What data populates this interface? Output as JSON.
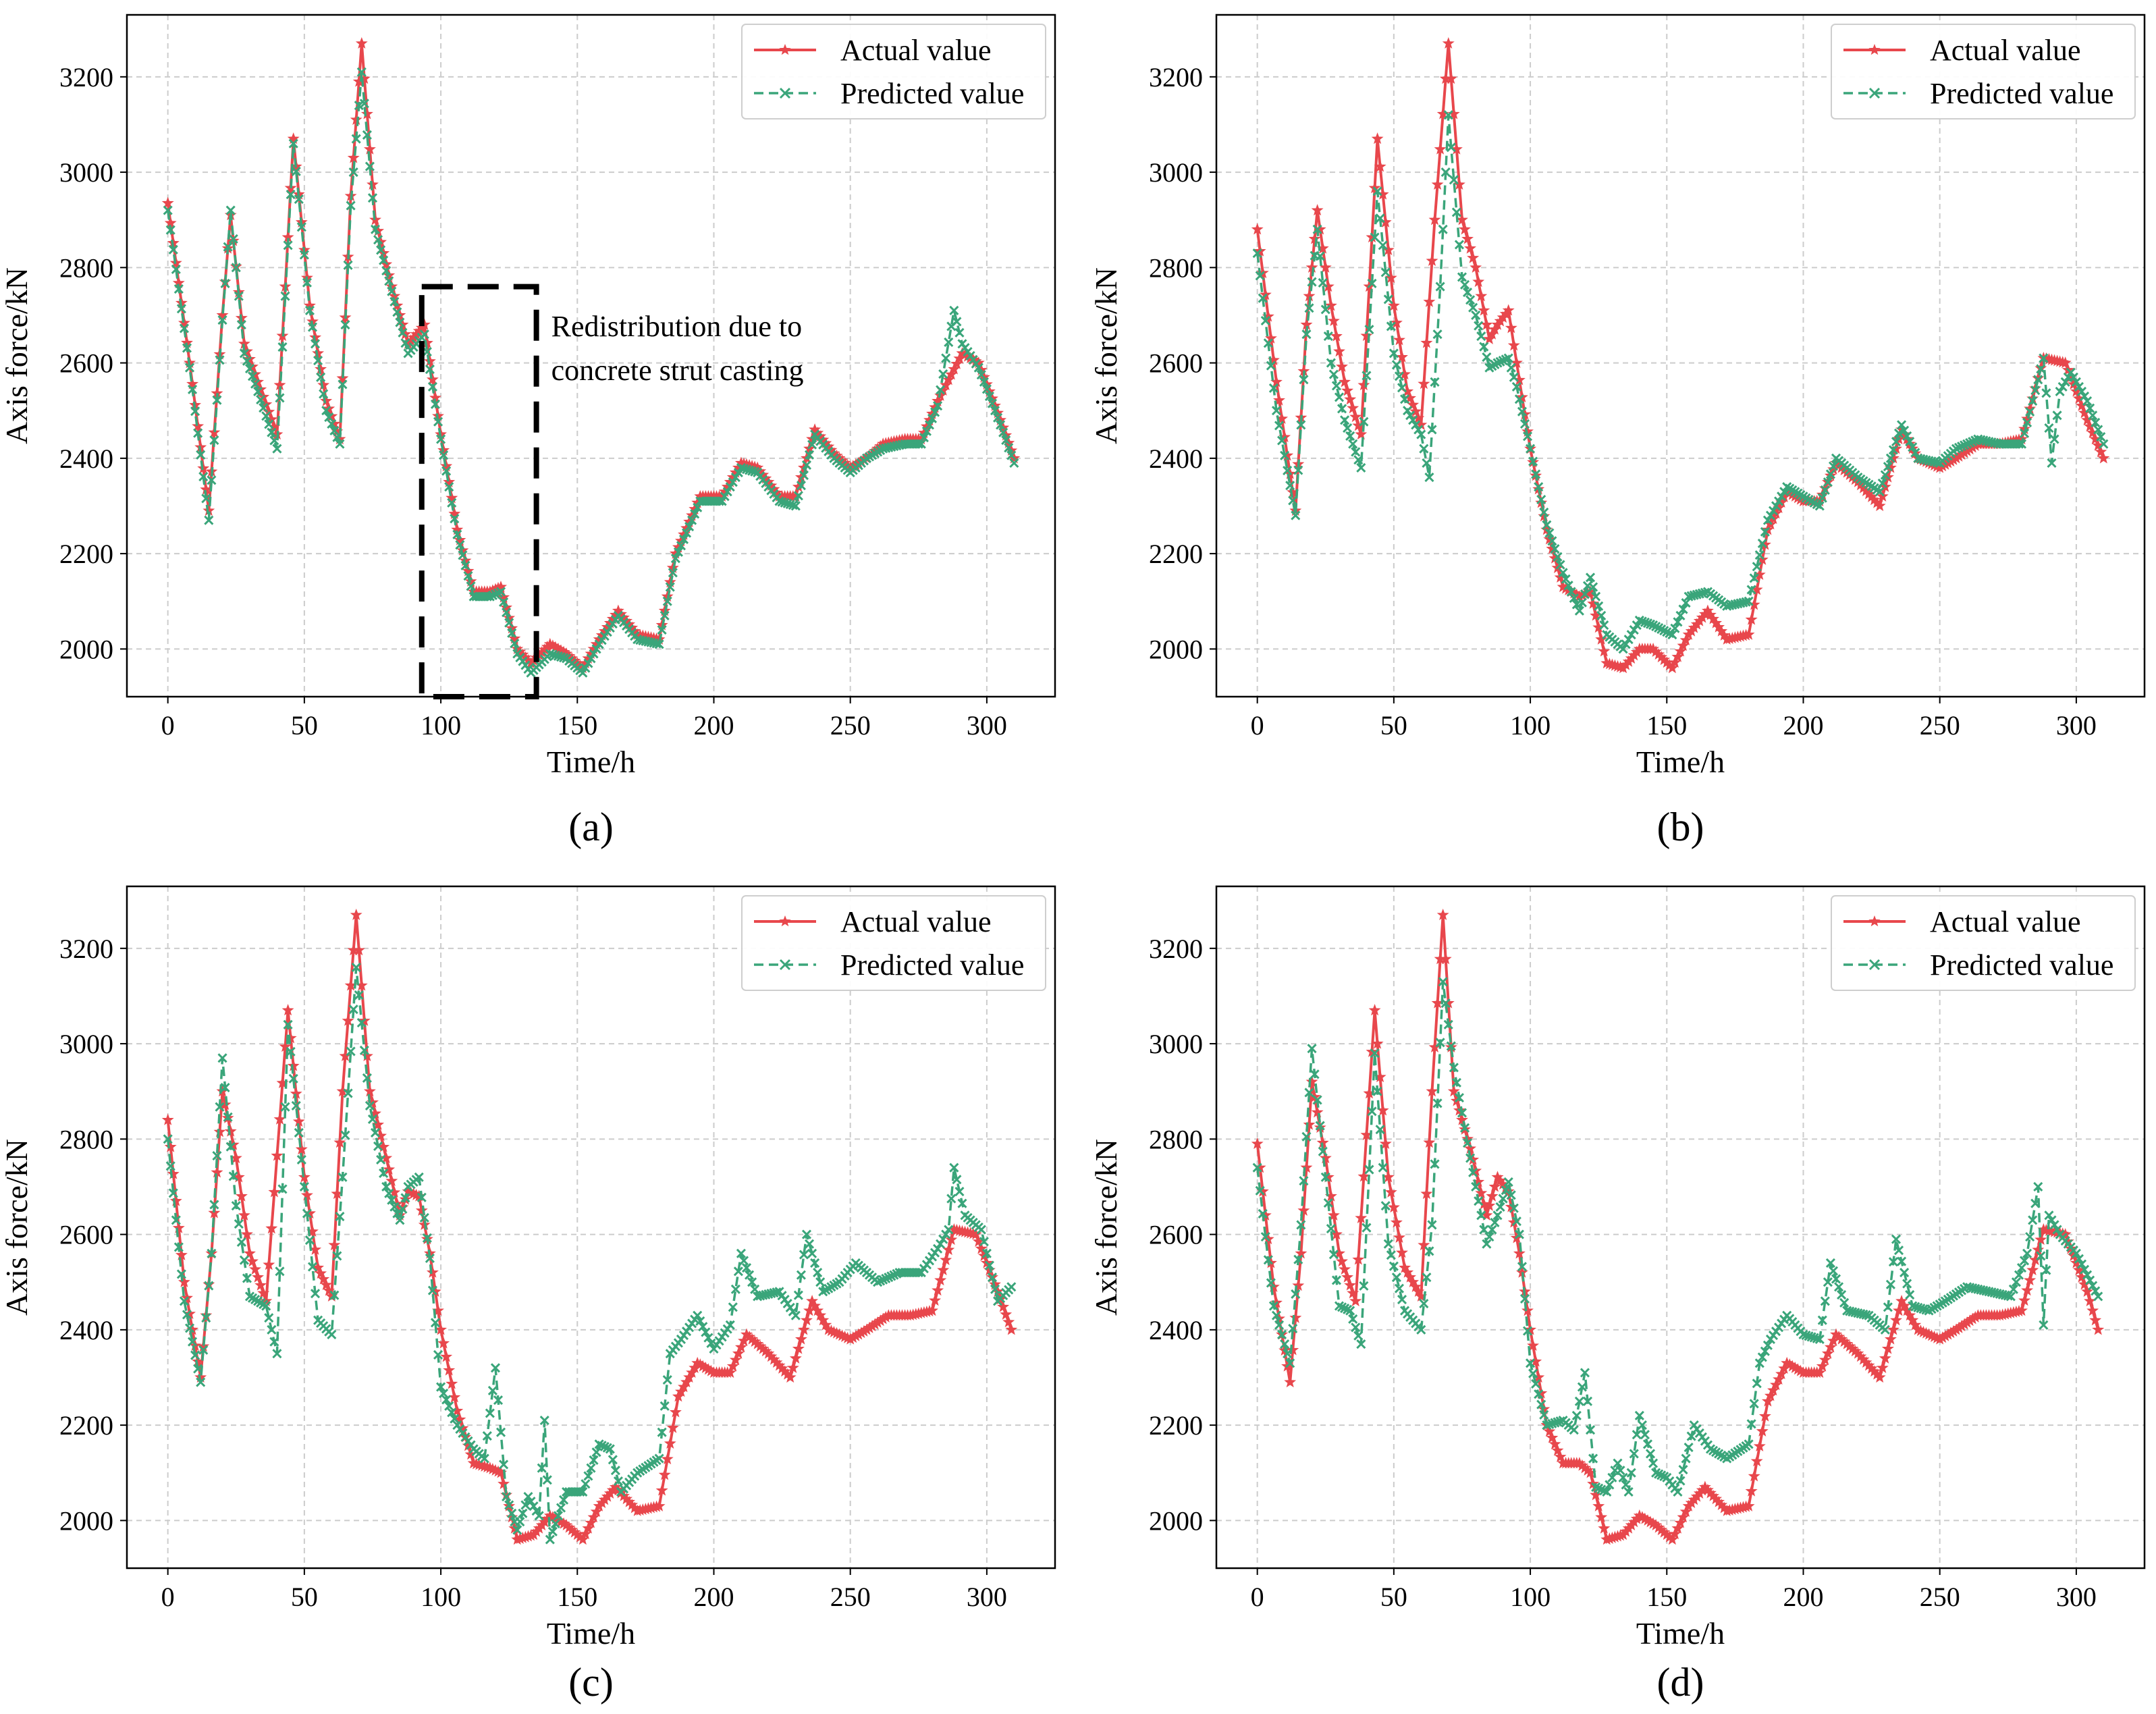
{
  "colors": {
    "actual": "#e8474c",
    "predicted": "#3aa57a",
    "grid": "#cccccc",
    "annotation_box": "#000000"
  },
  "chart_data": [
    {
      "type": "line",
      "panel": "a",
      "caption": "(a)",
      "xlabel": "Time/h",
      "ylabel": "Axis force/kN",
      "xlim": [
        -15,
        325
      ],
      "ylim": [
        1900,
        3330
      ],
      "xticks": [
        0,
        50,
        100,
        150,
        200,
        250,
        300
      ],
      "yticks": [
        2000,
        2200,
        2400,
        2600,
        2800,
        3000,
        3200
      ],
      "grid": true,
      "legend": "top-right",
      "annotation": {
        "text_line1": "Redistribution due to",
        "text_line2": "concrete strut casting",
        "box_x": [
          93,
          135
        ],
        "box_y": [
          1900,
          2760
        ]
      },
      "series": [
        {
          "name": "Actual value",
          "style": "solid-star",
          "x": [
            0,
            8,
            15,
            20,
            23,
            28,
            33,
            40,
            46,
            52,
            58,
            63,
            67,
            71,
            76,
            82,
            88,
            94,
            100,
            106,
            112,
            118,
            122,
            128,
            133,
            140,
            146,
            152,
            158,
            165,
            172,
            180,
            186,
            195,
            203,
            210,
            216,
            224,
            230,
            237,
            244,
            250,
            256,
            262,
            270,
            276,
            282,
            291,
            297,
            305,
            310
          ],
          "values": [
            2935,
            2600,
            2290,
            2700,
            2910,
            2640,
            2560,
            2450,
            3070,
            2720,
            2520,
            2440,
            2950,
            3270,
            2900,
            2760,
            2640,
            2680,
            2450,
            2250,
            2120,
            2120,
            2130,
            2000,
            1970,
            2010,
            1990,
            1960,
            2020,
            2080,
            2030,
            2020,
            2200,
            2320,
            2320,
            2390,
            2380,
            2320,
            2320,
            2460,
            2410,
            2380,
            2400,
            2430,
            2440,
            2440,
            2520,
            2620,
            2600,
            2480,
            2400
          ]
        },
        {
          "name": "Predicted value",
          "style": "dashed-x",
          "x": [
            0,
            8,
            15,
            20,
            23,
            28,
            33,
            40,
            46,
            52,
            58,
            63,
            67,
            71,
            76,
            82,
            88,
            94,
            100,
            106,
            112,
            118,
            122,
            128,
            133,
            140,
            146,
            152,
            158,
            165,
            172,
            180,
            186,
            195,
            203,
            210,
            216,
            224,
            230,
            237,
            244,
            250,
            256,
            262,
            270,
            276,
            282,
            288,
            291,
            297,
            305,
            310
          ],
          "values": [
            2920,
            2590,
            2270,
            2690,
            2920,
            2620,
            2540,
            2420,
            3060,
            2710,
            2500,
            2430,
            2930,
            3210,
            2880,
            2750,
            2620,
            2660,
            2440,
            2240,
            2110,
            2110,
            2120,
            1990,
            1950,
            1990,
            1980,
            1950,
            2010,
            2070,
            2020,
            2010,
            2190,
            2310,
            2310,
            2380,
            2370,
            2310,
            2300,
            2450,
            2400,
            2370,
            2400,
            2420,
            2430,
            2430,
            2510,
            2710,
            2640,
            2590,
            2470,
            2390
          ]
        }
      ]
    },
    {
      "type": "line",
      "panel": "b",
      "caption": "(b)",
      "xlabel": "Time/h",
      "ylabel": "Axis force/kN",
      "xlim": [
        -15,
        325
      ],
      "ylim": [
        1900,
        3330
      ],
      "xticks": [
        0,
        50,
        100,
        150,
        200,
        250,
        300
      ],
      "yticks": [
        2000,
        2200,
        2400,
        2600,
        2800,
        3000,
        3200
      ],
      "grid": true,
      "legend": "top-right",
      "series": [
        {
          "name": "Actual value",
          "style": "solid-star",
          "x": [
            0,
            7,
            14,
            18,
            22,
            27,
            32,
            38,
            44,
            50,
            55,
            60,
            65,
            70,
            75,
            80,
            85,
            88,
            92,
            95,
            100,
            106,
            112,
            118,
            122,
            128,
            134,
            140,
            145,
            152,
            158,
            165,
            172,
            180,
            187,
            194,
            200,
            206,
            212,
            220,
            228,
            236,
            242,
            250,
            256,
            264,
            272,
            280,
            288,
            296,
            304,
            310
          ],
          "values": [
            2880,
            2560,
            2290,
            2680,
            2920,
            2720,
            2560,
            2450,
            3070,
            2720,
            2540,
            2470,
            2900,
            3270,
            2900,
            2800,
            2650,
            2680,
            2710,
            2600,
            2420,
            2250,
            2130,
            2110,
            2120,
            1970,
            1960,
            2000,
            2000,
            1960,
            2030,
            2080,
            2020,
            2030,
            2250,
            2330,
            2310,
            2310,
            2390,
            2350,
            2300,
            2460,
            2400,
            2380,
            2400,
            2430,
            2430,
            2440,
            2610,
            2600,
            2480,
            2400
          ]
        },
        {
          "name": "Predicted value",
          "style": "dashed-x",
          "x": [
            0,
            7,
            14,
            18,
            22,
            27,
            32,
            38,
            44,
            50,
            55,
            60,
            63,
            67,
            70,
            75,
            80,
            85,
            88,
            92,
            95,
            100,
            106,
            112,
            118,
            122,
            128,
            134,
            140,
            145,
            152,
            158,
            165,
            172,
            180,
            187,
            194,
            200,
            206,
            212,
            220,
            228,
            236,
            242,
            250,
            256,
            264,
            272,
            280,
            284,
            288,
            291,
            294,
            298,
            304,
            310
          ],
          "values": [
            2830,
            2500,
            2280,
            2660,
            2880,
            2600,
            2480,
            2380,
            2960,
            2620,
            2500,
            2450,
            2360,
            2760,
            3120,
            2780,
            2700,
            2590,
            2600,
            2610,
            2550,
            2420,
            2260,
            2160,
            2080,
            2150,
            2030,
            2000,
            2060,
            2050,
            2030,
            2110,
            2120,
            2090,
            2100,
            2270,
            2340,
            2320,
            2300,
            2400,
            2360,
            2330,
            2470,
            2400,
            2390,
            2420,
            2440,
            2430,
            2430,
            2520,
            2610,
            2390,
            2540,
            2580,
            2520,
            2430
          ]
        }
      ]
    },
    {
      "type": "line",
      "panel": "c",
      "caption": "(c)",
      "xlabel": "Time/h",
      "ylabel": "Axis force/kN",
      "xlim": [
        -15,
        325
      ],
      "ylim": [
        1900,
        3330
      ],
      "xticks": [
        0,
        50,
        100,
        150,
        200,
        250,
        300
      ],
      "yticks": [
        2000,
        2200,
        2400,
        2600,
        2800,
        3000,
        3200
      ],
      "grid": true,
      "legend": "top-right",
      "series": [
        {
          "name": "Actual value",
          "style": "solid-star",
          "x": [
            0,
            6,
            12,
            16,
            20,
            25,
            30,
            36,
            44,
            50,
            55,
            60,
            64,
            69,
            74,
            80,
            85,
            88,
            92,
            96,
            100,
            106,
            112,
            118,
            122,
            128,
            134,
            140,
            146,
            152,
            158,
            164,
            172,
            180,
            187,
            194,
            200,
            206,
            212,
            220,
            228,
            236,
            242,
            250,
            256,
            264,
            272,
            280,
            288,
            296,
            304,
            309
          ],
          "values": [
            2840,
            2500,
            2300,
            2560,
            2900,
            2760,
            2560,
            2460,
            3070,
            2720,
            2530,
            2470,
            2900,
            3270,
            2900,
            2760,
            2640,
            2690,
            2680,
            2560,
            2400,
            2230,
            2120,
            2110,
            2100,
            1960,
            1970,
            2010,
            1990,
            1960,
            2030,
            2070,
            2020,
            2030,
            2260,
            2330,
            2310,
            2310,
            2390,
            2350,
            2300,
            2460,
            2400,
            2380,
            2400,
            2430,
            2430,
            2440,
            2610,
            2600,
            2480,
            2400
          ]
        },
        {
          "name": "Predicted value",
          "style": "dashed-x",
          "x": [
            0,
            6,
            12,
            16,
            20,
            25,
            30,
            36,
            40,
            44,
            50,
            55,
            60,
            64,
            69,
            74,
            80,
            85,
            88,
            92,
            96,
            100,
            106,
            112,
            116,
            120,
            124,
            128,
            132,
            136,
            138,
            140,
            146,
            152,
            158,
            162,
            166,
            172,
            180,
            184,
            188,
            194,
            200,
            206,
            210,
            216,
            224,
            230,
            234,
            240,
            246,
            252,
            260,
            268,
            276,
            282,
            286,
            288,
            292,
            298,
            304,
            309
          ],
          "values": [
            2800,
            2460,
            2290,
            2560,
            2970,
            2660,
            2470,
            2450,
            2350,
            3040,
            2700,
            2420,
            2390,
            2720,
            3160,
            2870,
            2700,
            2630,
            2700,
            2720,
            2550,
            2280,
            2200,
            2150,
            2130,
            2320,
            2050,
            1980,
            2050,
            2010,
            2210,
            1960,
            2060,
            2060,
            2160,
            2150,
            2060,
            2100,
            2130,
            2350,
            2380,
            2430,
            2360,
            2410,
            2560,
            2470,
            2480,
            2430,
            2600,
            2480,
            2500,
            2540,
            2500,
            2520,
            2520,
            2570,
            2610,
            2740,
            2640,
            2610,
            2460,
            2490
          ]
        }
      ]
    },
    {
      "type": "line",
      "panel": "d",
      "caption": "(d)",
      "xlabel": "Time/h",
      "ylabel": "Axis force/kN",
      "xlim": [
        -15,
        325
      ],
      "ylim": [
        1900,
        3330
      ],
      "xticks": [
        0,
        50,
        100,
        150,
        200,
        250,
        300
      ],
      "yticks": [
        2000,
        2200,
        2400,
        2600,
        2800,
        3000,
        3200
      ],
      "grid": true,
      "legend": "top-right",
      "series": [
        {
          "name": "Actual value",
          "style": "solid-star",
          "x": [
            0,
            6,
            12,
            16,
            20,
            25,
            30,
            36,
            43,
            48,
            54,
            60,
            64,
            68,
            72,
            78,
            84,
            88,
            92,
            96,
            100,
            106,
            112,
            118,
            122,
            128,
            134,
            140,
            146,
            152,
            158,
            164,
            172,
            180,
            187,
            194,
            200,
            206,
            212,
            220,
            228,
            236,
            242,
            250,
            256,
            264,
            272,
            280,
            288,
            296,
            304,
            308
          ],
          "values": [
            2790,
            2490,
            2290,
            2560,
            2920,
            2760,
            2560,
            2460,
            3070,
            2720,
            2530,
            2470,
            2900,
            3270,
            2900,
            2780,
            2640,
            2720,
            2690,
            2560,
            2400,
            2200,
            2120,
            2120,
            2100,
            1960,
            1970,
            2010,
            1990,
            1960,
            2030,
            2070,
            2020,
            2030,
            2250,
            2330,
            2310,
            2310,
            2390,
            2350,
            2300,
            2460,
            2400,
            2380,
            2400,
            2430,
            2430,
            2440,
            2610,
            2600,
            2480,
            2400
          ]
        },
        {
          "name": "Predicted value",
          "style": "dashed-x",
          "x": [
            0,
            6,
            12,
            16,
            20,
            25,
            30,
            34,
            38,
            43,
            48,
            54,
            60,
            64,
            68,
            72,
            78,
            84,
            88,
            92,
            96,
            100,
            106,
            112,
            116,
            120,
            124,
            128,
            132,
            136,
            140,
            146,
            150,
            154,
            160,
            166,
            172,
            180,
            184,
            188,
            194,
            200,
            206,
            210,
            216,
            224,
            230,
            234,
            240,
            246,
            252,
            260,
            268,
            276,
            282,
            286,
            288,
            290,
            294,
            300,
            308
          ],
          "values": [
            2740,
            2450,
            2330,
            2620,
            2990,
            2720,
            2450,
            2440,
            2370,
            2980,
            2580,
            2440,
            2400,
            2620,
            3130,
            2950,
            2760,
            2580,
            2640,
            2710,
            2600,
            2330,
            2200,
            2210,
            2190,
            2310,
            2070,
            2060,
            2120,
            2060,
            2220,
            2100,
            2090,
            2060,
            2200,
            2150,
            2130,
            2160,
            2330,
            2380,
            2430,
            2390,
            2380,
            2540,
            2440,
            2430,
            2400,
            2590,
            2450,
            2440,
            2460,
            2490,
            2480,
            2470,
            2560,
            2700,
            2410,
            2640,
            2600,
            2560,
            2470
          ]
        }
      ]
    }
  ]
}
